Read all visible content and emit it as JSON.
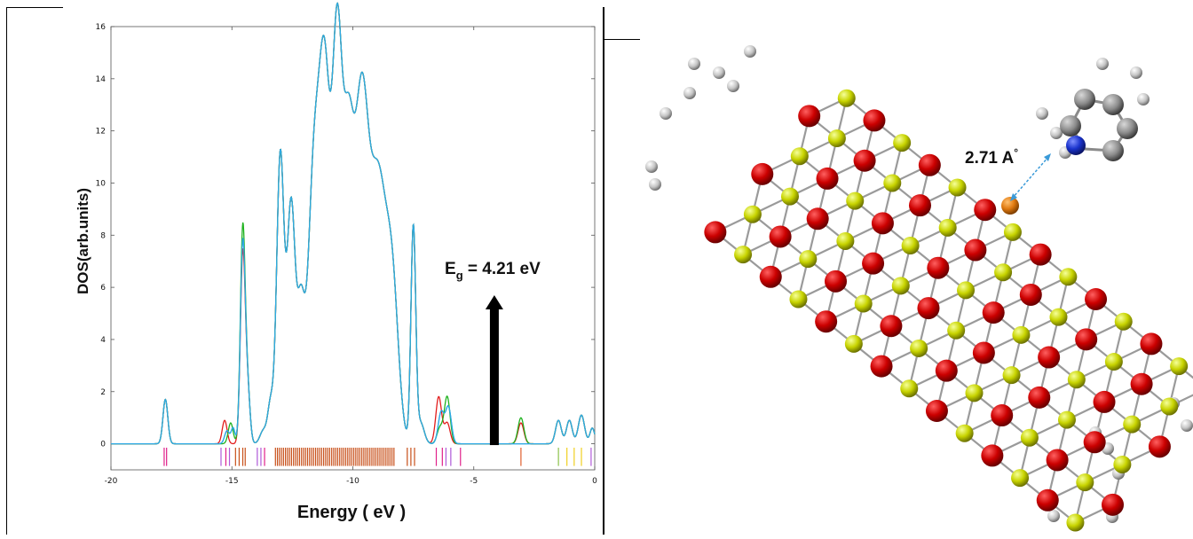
{
  "chart_data": {
    "type": "line",
    "title": "",
    "xlabel": "Energy ( eV )",
    "ylabel": "DOS(arb.units)",
    "xlim": [
      -20,
      0
    ],
    "ylim": [
      -1,
      16
    ],
    "xticks": [
      -20,
      -15,
      -10,
      -5,
      0
    ],
    "yticks": [
      0,
      2,
      4,
      6,
      8,
      10,
      12,
      14,
      16
    ],
    "grid": false,
    "legend": "none",
    "series": [
      {
        "color": "#2ea9e6",
        "peaks": [
          [
            -17.75,
            1.7,
            0.1
          ],
          [
            -15.2,
            0.5,
            0.1
          ],
          [
            -14.95,
            0.6,
            0.08
          ],
          [
            -14.55,
            7.6,
            0.1
          ],
          [
            -14.35,
            2.0,
            0.1
          ],
          [
            -13.7,
            0.5,
            0.14
          ],
          [
            -13.4,
            1.5,
            0.12
          ],
          [
            -13.0,
            11.0,
            0.15
          ],
          [
            -12.55,
            9.2,
            0.17
          ],
          [
            -12.15,
            4.6,
            0.15
          ],
          [
            -11.6,
            10.6,
            0.25
          ],
          [
            -11.15,
            12.7,
            0.22
          ],
          [
            -10.65,
            14.6,
            0.2
          ],
          [
            -10.2,
            10.5,
            0.22
          ],
          [
            -9.65,
            12.4,
            0.28
          ],
          [
            -8.95,
            10.0,
            0.35
          ],
          [
            -8.35,
            5.0,
            0.25
          ],
          [
            -7.5,
            8.3,
            0.1
          ],
          [
            -7.2,
            0.8,
            0.15
          ],
          [
            -6.35,
            1.2,
            0.12
          ],
          [
            -6.05,
            1.4,
            0.12
          ],
          [
            -1.5,
            0.9,
            0.12
          ],
          [
            -1.05,
            0.9,
            0.12
          ],
          [
            -0.55,
            1.1,
            0.13
          ],
          [
            -0.1,
            0.6,
            0.1
          ]
        ]
      },
      {
        "color": "#e21d1d",
        "peaks": [
          [
            -17.75,
            1.7,
            0.1
          ],
          [
            -15.3,
            0.9,
            0.1
          ],
          [
            -14.55,
            7.2,
            0.1
          ],
          [
            -14.35,
            2.0,
            0.1
          ],
          [
            -13.7,
            0.5,
            0.14
          ],
          [
            -13.4,
            1.5,
            0.12
          ],
          [
            -13.0,
            11.0,
            0.15
          ],
          [
            -12.55,
            9.2,
            0.17
          ],
          [
            -12.15,
            4.6,
            0.15
          ],
          [
            -11.6,
            10.6,
            0.25
          ],
          [
            -11.15,
            12.7,
            0.22
          ],
          [
            -10.65,
            14.6,
            0.2
          ],
          [
            -10.2,
            10.5,
            0.22
          ],
          [
            -9.65,
            12.4,
            0.28
          ],
          [
            -8.95,
            10.0,
            0.35
          ],
          [
            -8.35,
            5.0,
            0.25
          ],
          [
            -7.5,
            8.3,
            0.1
          ],
          [
            -7.2,
            0.8,
            0.15
          ],
          [
            -6.45,
            1.8,
            0.12
          ],
          [
            -6.1,
            0.8,
            0.12
          ],
          [
            -3.05,
            0.8,
            0.12
          ],
          [
            -1.5,
            0.9,
            0.12
          ],
          [
            -1.05,
            0.9,
            0.12
          ],
          [
            -0.55,
            1.1,
            0.13
          ],
          [
            -0.1,
            0.6,
            0.1
          ]
        ]
      },
      {
        "color": "#1fb21f",
        "peaks": [
          [
            -17.75,
            1.7,
            0.1
          ],
          [
            -15.05,
            0.8,
            0.1
          ],
          [
            -14.55,
            8.2,
            0.1
          ],
          [
            -14.35,
            2.0,
            0.1
          ],
          [
            -13.7,
            0.5,
            0.14
          ],
          [
            -13.4,
            1.5,
            0.12
          ],
          [
            -13.0,
            11.0,
            0.15
          ],
          [
            -12.55,
            9.2,
            0.17
          ],
          [
            -12.15,
            4.6,
            0.15
          ],
          [
            -11.6,
            10.6,
            0.25
          ],
          [
            -11.15,
            12.7,
            0.22
          ],
          [
            -10.65,
            14.6,
            0.2
          ],
          [
            -10.2,
            10.5,
            0.22
          ],
          [
            -9.65,
            12.4,
            0.28
          ],
          [
            -8.95,
            10.0,
            0.35
          ],
          [
            -8.35,
            5.0,
            0.25
          ],
          [
            -7.5,
            8.3,
            0.1
          ],
          [
            -7.2,
            0.8,
            0.15
          ],
          [
            -6.1,
            1.8,
            0.12
          ],
          [
            -6.4,
            0.6,
            0.12
          ],
          [
            -3.05,
            1.0,
            0.12
          ],
          [
            -1.5,
            0.9,
            0.12
          ],
          [
            -1.05,
            0.9,
            0.12
          ],
          [
            -0.55,
            1.1,
            0.13
          ],
          [
            -0.1,
            0.6,
            0.1
          ]
        ]
      }
    ],
    "level_lines": {
      "y_top": -0.15,
      "y_bottom": -0.85,
      "groups": [
        {
          "color": "#e0208a",
          "x": [
            -17.8,
            -17.7
          ]
        },
        {
          "color": "#b05ad8",
          "x": [
            -15.45,
            -15.1
          ]
        },
        {
          "color": "#e0208a",
          "x": [
            -15.25
          ]
        },
        {
          "color": "#c8501a",
          "x": [
            -14.85,
            -14.7,
            -14.55,
            -14.45
          ]
        },
        {
          "color": "#b05ad8",
          "x": [
            -13.95,
            -13.8
          ]
        },
        {
          "color": "#e0208a",
          "x": [
            -13.65
          ]
        },
        {
          "color": "#c8501a",
          "dense_from": -13.2,
          "dense_to": -8.3,
          "count": 60
        },
        {
          "color": "#c8501a",
          "x": [
            -7.75,
            -7.6,
            -7.45
          ]
        },
        {
          "color": "#e0208a",
          "x": [
            -6.55,
            -6.3
          ]
        },
        {
          "color": "#b05ad8",
          "x": [
            -6.15,
            -5.95
          ]
        },
        {
          "color": "#e0208a",
          "x": [
            -5.55
          ]
        },
        {
          "color": "#e06030",
          "x": [
            -3.05
          ]
        },
        {
          "color": "#8bc34a",
          "x": [
            -1.5
          ]
        },
        {
          "color": "#f0d020",
          "x": [
            -1.15,
            -0.85,
            -0.55
          ]
        },
        {
          "color": "#b05ad8",
          "x": [
            -0.15
          ]
        }
      ]
    },
    "annotation": {
      "text_main": "E",
      "text_sub": "g",
      "text_rest": " = 4.21 eV",
      "arrow_x": -4.15,
      "arrow_y_from": -0.05,
      "arrow_y_to": 5.7
    }
  },
  "molecule": {
    "distance_label": "2.71 A",
    "distance_degree": "°",
    "colors": {
      "oxygen": "#cc0000",
      "zinc": "#c8d400",
      "hydrogen": "#b0b0b0",
      "carbon": "#8a8a8a",
      "nitrogen": "#1a33cc",
      "dopant": "#e07a10"
    }
  }
}
